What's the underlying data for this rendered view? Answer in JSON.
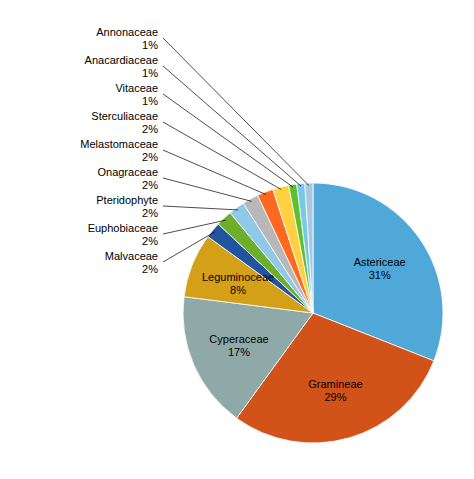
{
  "chart_data": {
    "type": "pie",
    "categories": [
      "Astericeae",
      "Gramineae",
      "Cyperaceae",
      "Leguminoceae",
      "Malvaceae",
      "Euphobiaceae",
      "Pteridophyte",
      "Onagraceae",
      "Melastomaceae",
      "Sterculiaceae",
      "Vitaceae",
      "Anacardiaceae",
      "Annonaceae"
    ],
    "values": [
      31,
      29,
      17,
      8,
      2,
      2,
      2,
      2,
      2,
      2,
      1,
      1,
      1
    ],
    "value_labels": [
      "31%",
      "29%",
      "17%",
      "8%",
      "2%",
      "2%",
      "2%",
      "2%",
      "2%",
      "2%",
      "1%",
      "1%",
      "1%"
    ],
    "colors": [
      "#4FA8D8",
      "#D2531A",
      "#8FA9A8",
      "#D4A017",
      "#2255A0",
      "#6DAF2A",
      "#90C8E8",
      "#B8B8B8",
      "#FF6820",
      "#FFD040",
      "#5EC030",
      "#78C8E8",
      "#A8C8E0"
    ],
    "data_labels": true
  }
}
